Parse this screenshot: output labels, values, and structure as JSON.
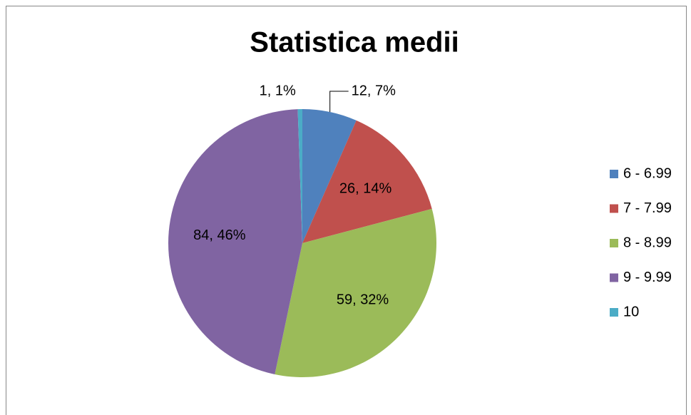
{
  "chart_data": {
    "type": "pie",
    "title": "Statistica medii",
    "categories": [
      "6 - 6.99",
      "7 - 7.99",
      "8 - 8.99",
      "9 - 9.99",
      "10"
    ],
    "values": [
      12,
      26,
      59,
      84,
      1
    ],
    "value_labels": [
      "12, 7%",
      "26, 14%",
      "59, 32%",
      "84, 46%",
      "1, 1%"
    ],
    "colors": [
      "#4f81bd",
      "#c0504d",
      "#9bbb59",
      "#8064a2",
      "#4bacc6"
    ],
    "legend": "right"
  }
}
